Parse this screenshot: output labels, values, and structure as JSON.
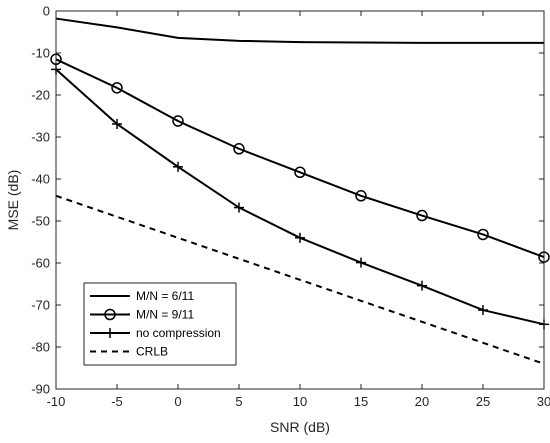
{
  "chart_data": {
    "type": "line",
    "title": "",
    "xlabel": "SNR (dB)",
    "ylabel": "MSE (dB)",
    "xlim": [
      -10,
      30
    ],
    "ylim": [
      -90,
      0
    ],
    "xticks": [
      -10,
      -5,
      0,
      5,
      10,
      15,
      20,
      25,
      30
    ],
    "yticks": [
      0,
      -10,
      -20,
      -30,
      -40,
      -50,
      -60,
      -70,
      -80,
      -90
    ],
    "grid": false,
    "legend_position": "bottom-left",
    "x": [
      -10,
      -5,
      0,
      5,
      10,
      15,
      20,
      25,
      30
    ],
    "series": [
      {
        "name": "M/N = 6/11",
        "marker": "none",
        "line_style": "solid",
        "color": "#000000",
        "values": [
          -1.8,
          -3.9,
          -6.4,
          -7.1,
          -7.4,
          -7.5,
          -7.6,
          -7.6,
          -7.6
        ]
      },
      {
        "name": "M/N = 9/11",
        "marker": "circle",
        "line_style": "solid",
        "color": "#000000",
        "values": [
          -11.5,
          -18.3,
          -26.2,
          -32.8,
          -38.4,
          -44.0,
          -48.7,
          -53.2,
          -58.6
        ]
      },
      {
        "name": "no compression",
        "marker": "plus",
        "line_style": "solid",
        "color": "#000000",
        "values": [
          -13.9,
          -26.9,
          -37.1,
          -46.8,
          -54.0,
          -59.9,
          -65.4,
          -71.2,
          -74.6
        ]
      },
      {
        "name": "CRLB",
        "marker": "none",
        "line_style": "dashed",
        "color": "#000000",
        "values": [
          -44.0,
          -49.0,
          -54.0,
          -59.0,
          -64.0,
          -69.0,
          -74.0,
          -79.0,
          -84.0
        ]
      }
    ]
  }
}
